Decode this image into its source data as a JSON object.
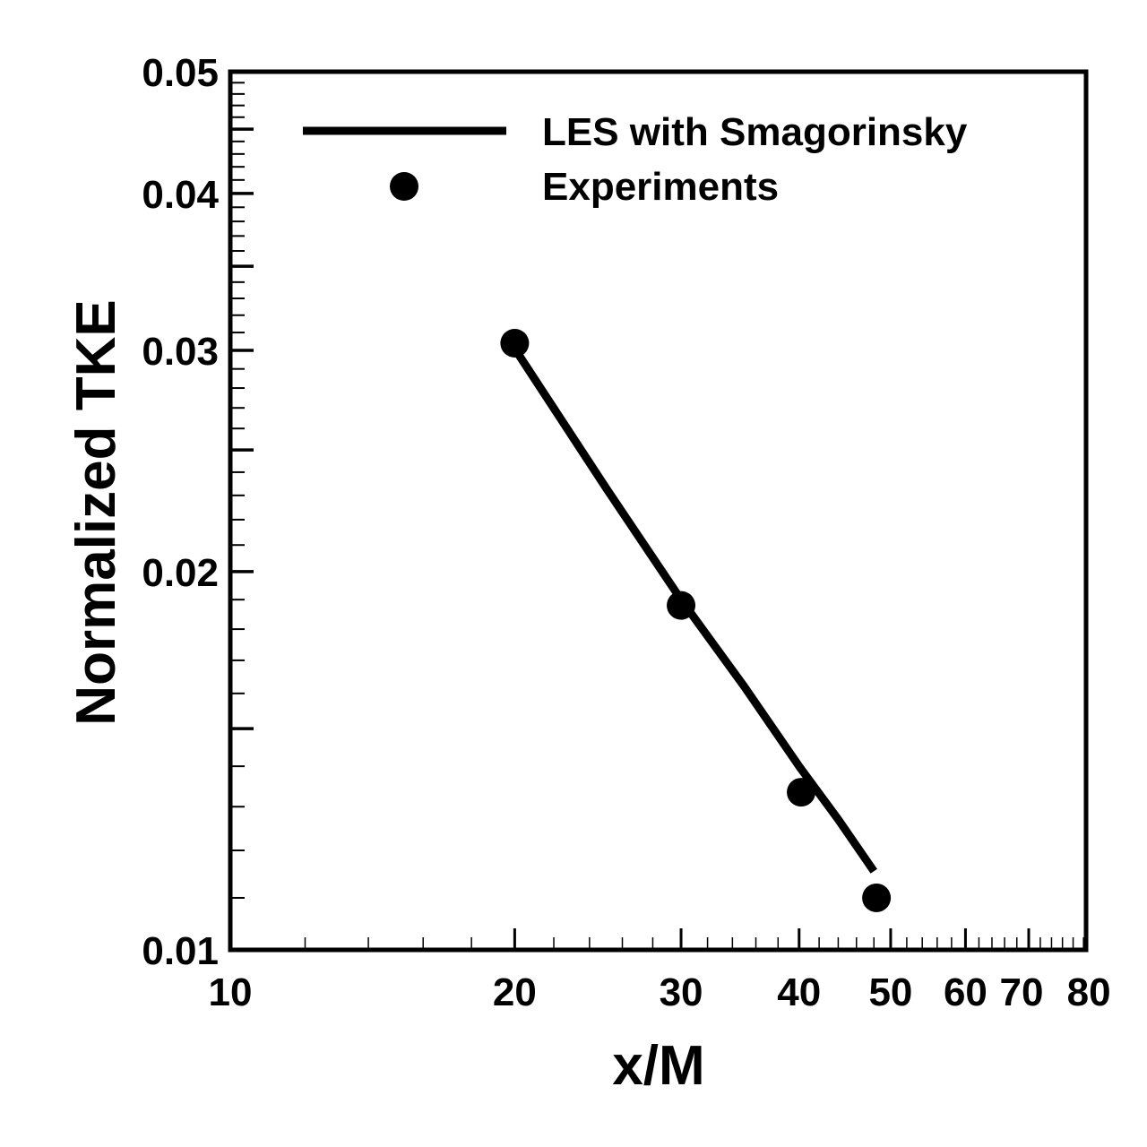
{
  "chart_data": {
    "type": "line",
    "title": "",
    "xlabel": "x/M",
    "ylabel": "Normalized TKE",
    "xscale": "log",
    "yscale": "log",
    "xlim": [
      10,
      80.5
    ],
    "ylim": [
      0.01,
      0.05
    ],
    "grid": false,
    "legend_position": "top-right",
    "x_tick_labels": [
      "10",
      "20",
      "30",
      "40",
      "50",
      "60",
      "70",
      "80"
    ],
    "x_tick_values": [
      10,
      20,
      30,
      40,
      50,
      60,
      70,
      80
    ],
    "y_tick_labels": [
      "0.01",
      "0.02",
      "0.03",
      "0.04",
      "0.05"
    ],
    "y_tick_values": [
      0.01,
      0.02,
      0.03,
      0.04,
      0.05
    ],
    "series": [
      {
        "name": "LES with Smagorinsky",
        "style": "line",
        "x": [
          20,
          25,
          30,
          35,
          40,
          44,
          48
        ],
        "y": [
          0.0301,
          0.0233,
          0.019,
          0.0162,
          0.014,
          0.0127,
          0.01155
        ]
      },
      {
        "name": "Experiments",
        "style": "marker",
        "x": [
          20,
          30,
          40.2,
          48.3
        ],
        "y": [
          0.0304,
          0.0188,
          0.01335,
          0.011
        ]
      }
    ],
    "color": "#000000"
  }
}
